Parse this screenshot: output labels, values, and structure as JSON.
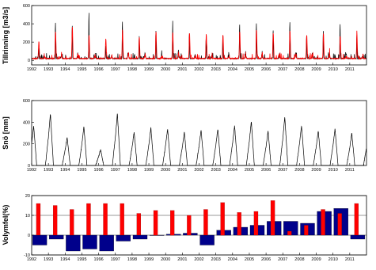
{
  "chart_data": [
    {
      "type": "line",
      "ylabel": "Tillrinning [m3/s]",
      "ylim": [
        -50,
        600
      ],
      "yticks": [
        0,
        200,
        400,
        600
      ],
      "xlim": [
        1992,
        2012
      ],
      "xticks": [
        "1992",
        "1993",
        "1994",
        "1995",
        "1996",
        "1997",
        "1998",
        "1999",
        "2000",
        "2001",
        "2002",
        "2003",
        "2004",
        "2005",
        "2006",
        "2007",
        "2008",
        "2009",
        "2010",
        "2011"
      ],
      "grid": false,
      "series_colors": [
        "#000000",
        "#ff0000"
      ],
      "years": [
        1992,
        1993,
        1994,
        1995,
        1996,
        1997,
        1998,
        1999,
        2000,
        2001,
        2002,
        2003,
        2004,
        2005,
        2006,
        2007,
        2008,
        2009,
        2010,
        2011
      ],
      "black_peaks": [
        120,
        420,
        390,
        540,
        150,
        430,
        260,
        330,
        380,
        300,
        250,
        270,
        400,
        410,
        330,
        430,
        270,
        320,
        410,
        270
      ],
      "red_peaks": [
        190,
        300,
        350,
        260,
        220,
        320,
        240,
        300,
        290,
        280,
        270,
        260,
        300,
        320,
        280,
        310,
        260,
        280,
        250,
        260
      ]
    },
    {
      "type": "line",
      "ylabel": "Snö [mm]",
      "ylim": [
        0,
        600
      ],
      "yticks": [
        0,
        200,
        400,
        600
      ],
      "xlim": [
        1992,
        2012
      ],
      "xticks": [
        "1992",
        "1993",
        "1994",
        "1995",
        "1996",
        "1997",
        "1998",
        "1999",
        "2000",
        "2001",
        "2002",
        "2003",
        "2004",
        "2005",
        "2006",
        "2007",
        "2008",
        "2009",
        "2010",
        "2011"
      ],
      "grid": false,
      "series_colors": [
        "#000000"
      ],
      "years": [
        1992,
        1993,
        1994,
        1995,
        1996,
        1997,
        1998,
        1999,
        2000,
        2001,
        2002,
        2003,
        2004,
        2005,
        2006,
        2007,
        2008,
        2009,
        2010,
        2011
      ],
      "peaks": [
        370,
        480,
        260,
        360,
        150,
        480,
        310,
        350,
        340,
        310,
        330,
        340,
        370,
        410,
        320,
        450,
        370,
        320,
        340,
        300
      ]
    },
    {
      "type": "bar",
      "ylabel": "Volymfel(%)",
      "ylim": [
        -10,
        20
      ],
      "yticks": [
        -10,
        0,
        10,
        20
      ],
      "xlim": [
        1992,
        2012
      ],
      "xticks": [
        "1992",
        "1993",
        "1994",
        "1995",
        "1996",
        "1997",
        "1998",
        "1999",
        "2000",
        "2001",
        "2002",
        "2003",
        "2004",
        "2005",
        "2006",
        "2007",
        "2008",
        "2009",
        "2010",
        "2011"
      ],
      "grid": true,
      "categories": [
        "1992",
        "1993",
        "1994",
        "1995",
        "1996",
        "1997",
        "1998",
        "1999",
        "2000",
        "2001",
        "2002",
        "2003",
        "2004",
        "2005",
        "2006",
        "2007",
        "2008",
        "2009",
        "2010",
        "2011"
      ],
      "series": [
        {
          "color": "#00008b",
          "values": [
            -5,
            -2,
            -8,
            -7,
            -8,
            -3,
            -2,
            0,
            0.5,
            1,
            -5,
            2.5,
            4,
            5,
            7,
            7,
            6,
            12,
            13.5,
            -2
          ]
        },
        {
          "color": "#ff0000",
          "values": [
            16,
            15,
            13,
            16,
            16,
            16,
            11,
            12.5,
            12.5,
            10,
            13,
            16.5,
            11.5,
            12,
            17.5,
            2,
            5,
            13,
            11,
            16
          ]
        }
      ]
    }
  ]
}
